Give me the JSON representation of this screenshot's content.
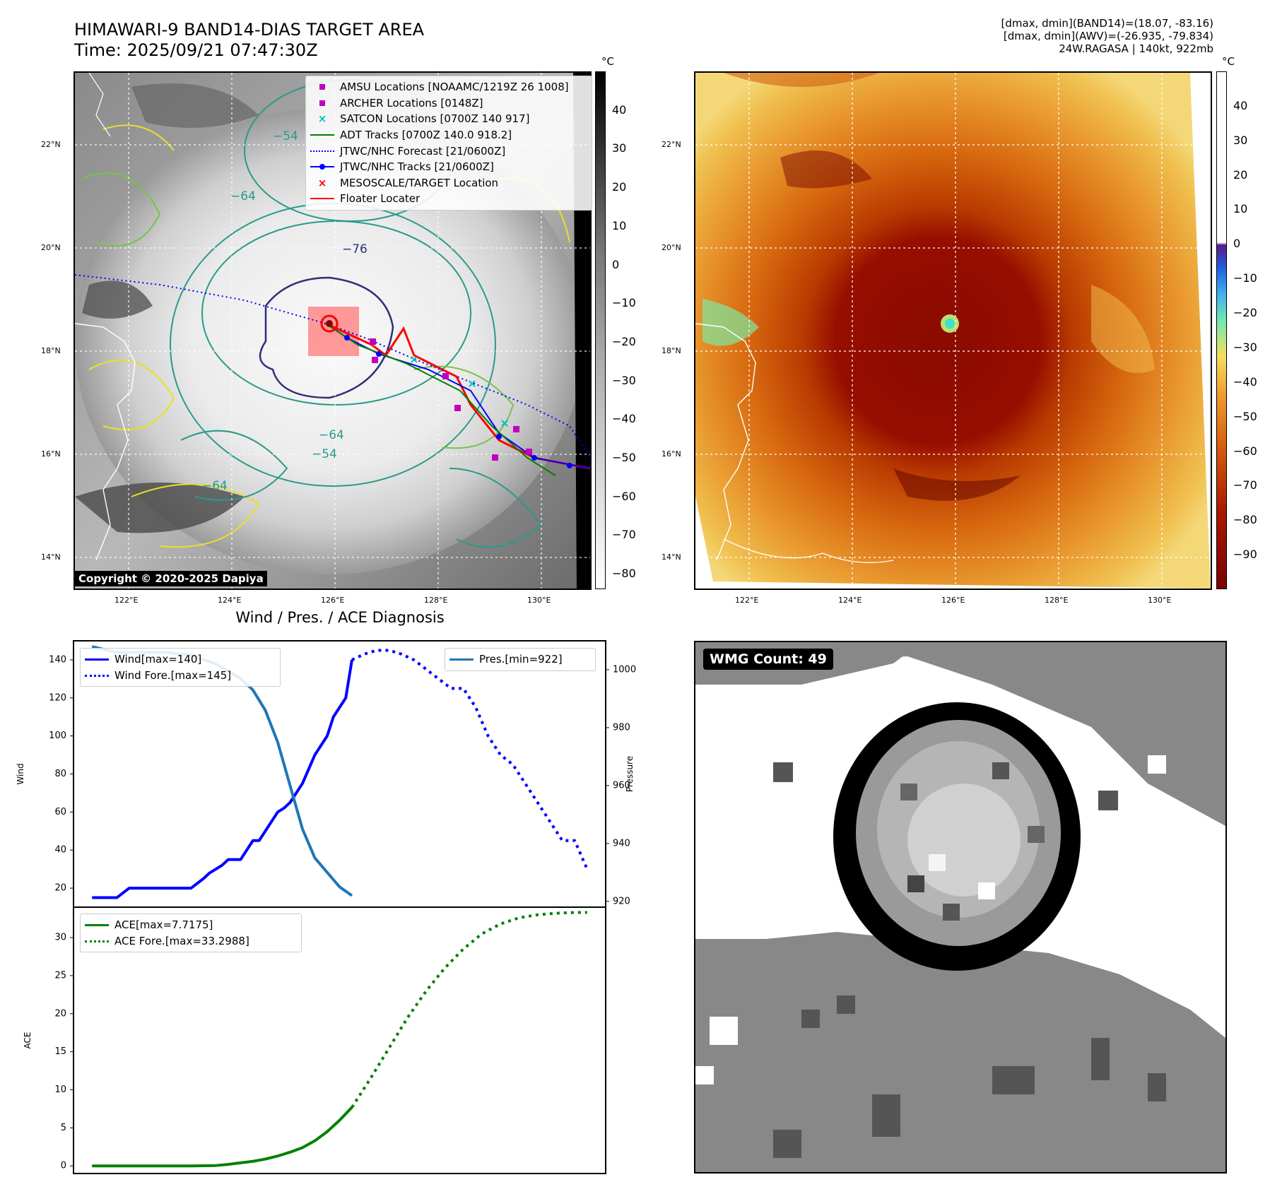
{
  "header": {
    "title_line1": "HIMAWARI-9 BAND14-DIAS TARGET AREA",
    "title_line2": "Time: 2025/09/21 07:47:30Z",
    "right_line1": "[dmax, dmin](BAND14)=(18.07, -83.16)",
    "right_line2": "[dmax, dmin](AWV)=(-26.935, -79.834)",
    "right_line3": "24W.RAGASA | 140kt, 922mb"
  },
  "map_axes": {
    "lat_labels": [
      "22°N",
      "20°N",
      "18°N",
      "16°N",
      "14°N"
    ],
    "lon_labels": [
      "122°E",
      "124°E",
      "126°E",
      "128°E",
      "130°E"
    ]
  },
  "ir_panel": {
    "colorbar_unit": "°C",
    "colorbar_ticks": [
      "40",
      "30",
      "20",
      "10",
      "0",
      "−10",
      "−20",
      "−30",
      "−40",
      "−50",
      "−60",
      "−70",
      "−80"
    ],
    "contour_labels": [
      "−76",
      "−64",
      "−54",
      "−64",
      "−54",
      "−64"
    ],
    "copyright": "Copyright © 2020-2025 Dapiya",
    "legend": [
      {
        "label": "AMSU Locations [NOAAMC/1219Z 26 1008]",
        "color": "#c000c0",
        "symbol": "square"
      },
      {
        "label": "ARCHER Locations [0148Z]",
        "color": "#c000c0",
        "symbol": "square"
      },
      {
        "label": "SATCON Locations [0700Z 140 917]",
        "color": "#00c0c0",
        "symbol": "x"
      },
      {
        "label": "ADT Tracks [0700Z 140.0 918.2]",
        "color": "#008000",
        "symbol": "line"
      },
      {
        "label": "JTWC/NHC Forecast [21/0600Z]",
        "color": "#0000ff",
        "symbol": "dotted"
      },
      {
        "label": "JTWC/NHC Tracks [21/0600Z]",
        "color": "#0000ff",
        "symbol": "line-dot"
      },
      {
        "label": "MESOSCALE/TARGET Location",
        "color": "#ff0000",
        "symbol": "x"
      },
      {
        "label": "Floater Locater",
        "color": "#ff0000",
        "symbol": "line"
      }
    ]
  },
  "awv_panel": {
    "colorbar_unit": "°C",
    "colorbar_ticks": [
      "40",
      "30",
      "20",
      "10",
      "0",
      "−10",
      "−20",
      "−30",
      "−40",
      "−50",
      "−60",
      "−70",
      "−80",
      "−90"
    ]
  },
  "diagnosis": {
    "title": "Wind / Pres. / ACE Diagnosis",
    "wind_ylabel": "Wind",
    "pressure_ylabel": "Pressure",
    "ace_ylabel": "ACE",
    "wind_ticks": [
      "20",
      "40",
      "60",
      "80",
      "100",
      "120",
      "140"
    ],
    "pressure_ticks": [
      "920",
      "940",
      "960",
      "980",
      "1000"
    ],
    "ace_ticks": [
      "0",
      "5",
      "10",
      "15",
      "20",
      "25",
      "30"
    ],
    "legend_wind": "Wind[max=140]",
    "legend_wind_fore": "Wind Fore.[max=145]",
    "legend_pres": "Pres.[min=922]",
    "legend_ace": "ACE[max=7.7175]",
    "legend_ace_fore": "ACE Fore.[max=33.2988]"
  },
  "wmg_panel": {
    "count_label": "WMG Count: 49"
  },
  "chart_data": [
    {
      "type": "line",
      "title": "Wind / Pres. / ACE Diagnosis",
      "ylabel": "Wind",
      "ylim": [
        10,
        150
      ],
      "x": [
        0,
        1,
        2,
        3,
        4,
        5,
        6,
        7,
        8,
        9,
        10,
        11,
        12,
        13,
        14,
        15,
        16,
        17,
        18,
        19,
        20,
        21,
        22,
        23,
        24,
        25,
        26,
        27,
        28,
        29,
        30,
        31,
        32,
        33,
        34,
        35,
        36,
        37,
        38,
        39,
        40,
        41,
        42,
        43,
        44,
        45,
        46,
        47,
        48,
        49,
        50
      ],
      "series": [
        {
          "name": "Wind[max=140]",
          "color": "#0000ff",
          "style": "solid",
          "x": [
            0,
            2,
            4,
            6,
            8,
            10,
            12,
            14,
            16,
            18,
            19,
            20,
            21,
            22,
            23,
            24,
            25,
            26,
            27,
            28,
            29,
            30,
            31,
            32,
            33,
            34,
            36,
            38,
            39,
            40,
            41,
            42
          ],
          "values": [
            15,
            15,
            15,
            20,
            20,
            20,
            20,
            20,
            20,
            25,
            28,
            30,
            32,
            35,
            35,
            35,
            40,
            45,
            45,
            50,
            55,
            60,
            62,
            65,
            70,
            75,
            90,
            100,
            110,
            115,
            120,
            140
          ]
        },
        {
          "name": "Wind Fore.[max=145]",
          "color": "#0000ff",
          "style": "dotted",
          "x": [
            42,
            44,
            46,
            48,
            50,
            52,
            54,
            56,
            58,
            60,
            62,
            64,
            66,
            68,
            70,
            72,
            74,
            76,
            78,
            80
          ],
          "values": [
            140,
            143,
            145,
            145,
            143,
            140,
            135,
            130,
            125,
            125,
            115,
            100,
            90,
            85,
            75,
            65,
            55,
            45,
            45,
            30
          ]
        }
      ]
    },
    {
      "type": "line",
      "ylabel": "Pressure",
      "ylim": [
        918,
        1010
      ],
      "series": [
        {
          "name": "Pres.[min=922]",
          "color": "#1f77b4",
          "style": "solid",
          "x": [
            0,
            4,
            8,
            12,
            16,
            20,
            24,
            26,
            28,
            30,
            32,
            34,
            36,
            38,
            40,
            42
          ],
          "values": [
            1008,
            1006,
            1006,
            1006,
            1005,
            1002,
            997,
            993,
            986,
            975,
            960,
            945,
            935,
            930,
            925,
            922
          ]
        }
      ]
    },
    {
      "type": "line",
      "ylabel": "ACE",
      "ylim": [
        -1,
        34
      ],
      "series": [
        {
          "name": "ACE[max=7.7175]",
          "color": "#008000",
          "style": "solid",
          "x": [
            0,
            4,
            8,
            12,
            16,
            20,
            22,
            24,
            26,
            28,
            30,
            32,
            34,
            36,
            38,
            40,
            42
          ],
          "values": [
            0,
            0,
            0,
            0,
            0,
            0.05,
            0.2,
            0.4,
            0.6,
            0.9,
            1.3,
            1.8,
            2.4,
            3.3,
            4.5,
            6.0,
            7.7
          ]
        },
        {
          "name": "ACE Fore.[max=33.2988]",
          "color": "#008000",
          "style": "dotted",
          "x": [
            42,
            45,
            48,
            51,
            54,
            57,
            60,
            63,
            66,
            69,
            72,
            75,
            78,
            80
          ],
          "values": [
            7.7,
            11.5,
            15.5,
            19.5,
            23.0,
            26.0,
            28.5,
            30.5,
            31.8,
            32.6,
            33.0,
            33.2,
            33.3,
            33.3
          ]
        }
      ]
    }
  ]
}
